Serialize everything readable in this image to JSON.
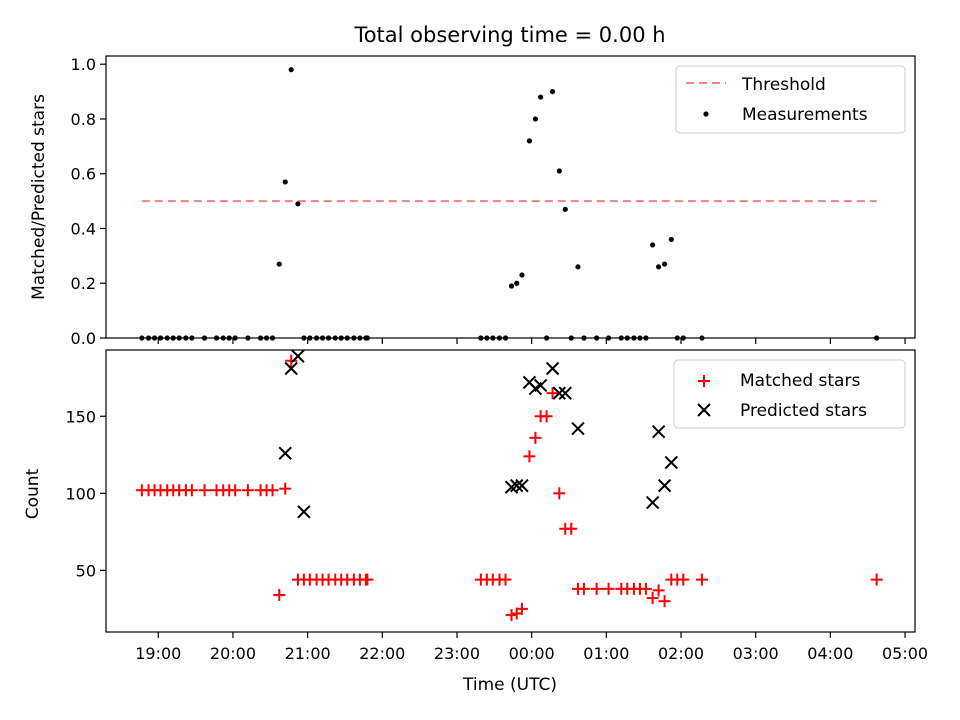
{
  "title": "Total observing time = 0.00 h",
  "colors": {
    "threshold": "#ff7f7f",
    "measurements": "#000000",
    "matched": "#ff0000",
    "predicted": "#000000"
  },
  "chart_data": [
    {
      "type": "scatter",
      "ylabel": "Matched/Predicted stars",
      "xlabel": "",
      "ylim": [
        0,
        1.03
      ],
      "yticks": [
        "0.0",
        "0.2",
        "0.4",
        "0.6",
        "0.8",
        "1.0"
      ],
      "grid": false,
      "legend_position": "top-right",
      "series": [
        {
          "name": "Threshold",
          "type": "line",
          "style": "dashed",
          "x": [
            18.78,
            28.62
          ],
          "y": [
            0.5,
            0.5
          ]
        },
        {
          "name": "Measurements",
          "type": "scatter",
          "x": [
            18.78,
            18.87,
            18.95,
            19.03,
            19.12,
            19.2,
            19.28,
            19.37,
            19.45,
            19.62,
            19.78,
            19.87,
            19.95,
            20.03,
            20.2,
            20.37,
            20.45,
            20.53,
            20.62,
            20.7,
            20.78,
            20.87,
            20.95,
            21.03,
            21.12,
            21.2,
            21.28,
            21.37,
            21.45,
            21.53,
            21.62,
            21.7,
            21.78,
            21.8,
            23.32,
            23.4,
            23.48,
            23.57,
            23.65,
            23.73,
            23.8,
            23.87,
            23.97,
            24.05,
            24.12,
            24.2,
            24.28,
            24.37,
            24.45,
            24.53,
            24.62,
            24.7,
            24.87,
            25.03,
            25.2,
            25.28,
            25.37,
            25.45,
            25.53,
            25.62,
            25.7,
            25.78,
            25.87,
            25.95,
            26.03,
            26.28,
            28.62
          ],
          "y": [
            0,
            0,
            0,
            0,
            0,
            0,
            0,
            0,
            0,
            0,
            0,
            0,
            0,
            0,
            0,
            0,
            0,
            0,
            0.27,
            0.57,
            0.98,
            0.49,
            0,
            0,
            0,
            0,
            0,
            0,
            0,
            0,
            0,
            0,
            0,
            0,
            0,
            0,
            0,
            0,
            0,
            0.19,
            0.2,
            0.23,
            0.72,
            0.8,
            0.88,
            0,
            0.9,
            0.61,
            0.47,
            0,
            0.26,
            0,
            0,
            0,
            0,
            0,
            0,
            0,
            0,
            0.34,
            0.26,
            0.27,
            0.36,
            0,
            0,
            0,
            0
          ]
        }
      ]
    },
    {
      "type": "scatter",
      "ylabel": "Count",
      "xlabel": "Time (UTC)",
      "ylim": [
        10,
        193
      ],
      "yticks": [
        "50",
        "100",
        "150"
      ],
      "xticks": [
        "19:00",
        "20:00",
        "21:00",
        "22:00",
        "23:00",
        "00:00",
        "01:00",
        "02:00",
        "03:00",
        "04:00",
        "05:00"
      ],
      "xlim": [
        "18:18",
        "05:08"
      ],
      "grid": false,
      "legend_position": "top-right",
      "series": [
        {
          "name": "Matched stars",
          "type": "scatter",
          "marker": "plus",
          "x": [
            18.78,
            18.87,
            18.95,
            19.03,
            19.12,
            19.2,
            19.28,
            19.37,
            19.45,
            19.62,
            19.78,
            19.87,
            19.95,
            20.03,
            20.2,
            20.37,
            20.45,
            20.53,
            20.62,
            20.7,
            20.78,
            20.87,
            20.95,
            21.03,
            21.12,
            21.2,
            21.28,
            21.37,
            21.45,
            21.53,
            21.62,
            21.7,
            21.78,
            21.8,
            23.32,
            23.4,
            23.48,
            23.57,
            23.65,
            23.73,
            23.8,
            23.87,
            23.97,
            24.05,
            24.12,
            24.2,
            24.28,
            24.37,
            24.45,
            24.53,
            24.62,
            24.7,
            24.87,
            25.03,
            25.2,
            25.28,
            25.37,
            25.45,
            25.53,
            25.62,
            25.7,
            25.78,
            25.87,
            25.95,
            26.03,
            26.28,
            28.62
          ],
          "y": [
            102,
            102,
            102,
            102,
            102,
            102,
            102,
            102,
            102,
            102,
            102,
            102,
            102,
            102,
            102,
            102,
            102,
            102,
            34,
            103,
            186,
            44,
            44,
            44,
            44,
            44,
            44,
            44,
            44,
            44,
            44,
            44,
            44,
            44,
            44,
            44,
            44,
            44,
            44,
            21,
            22,
            25,
            124,
            136,
            150,
            150,
            165,
            100,
            77,
            77,
            38,
            38,
            38,
            38,
            38,
            38,
            38,
            38,
            38,
            32,
            37,
            30,
            44,
            44,
            44,
            44,
            44
          ]
        },
        {
          "name": "Predicted stars",
          "type": "scatter",
          "marker": "x",
          "x": [
            20.7,
            20.78,
            20.87,
            20.95,
            23.73,
            23.8,
            23.87,
            23.97,
            24.05,
            24.12,
            24.28,
            24.37,
            24.45,
            24.62,
            25.62,
            25.7,
            25.78,
            25.87
          ],
          "y": [
            126,
            181,
            189,
            88,
            104,
            105,
            105,
            172,
            168,
            170,
            181,
            165,
            165,
            142,
            94,
            140,
            105,
            120
          ]
        }
      ]
    }
  ]
}
